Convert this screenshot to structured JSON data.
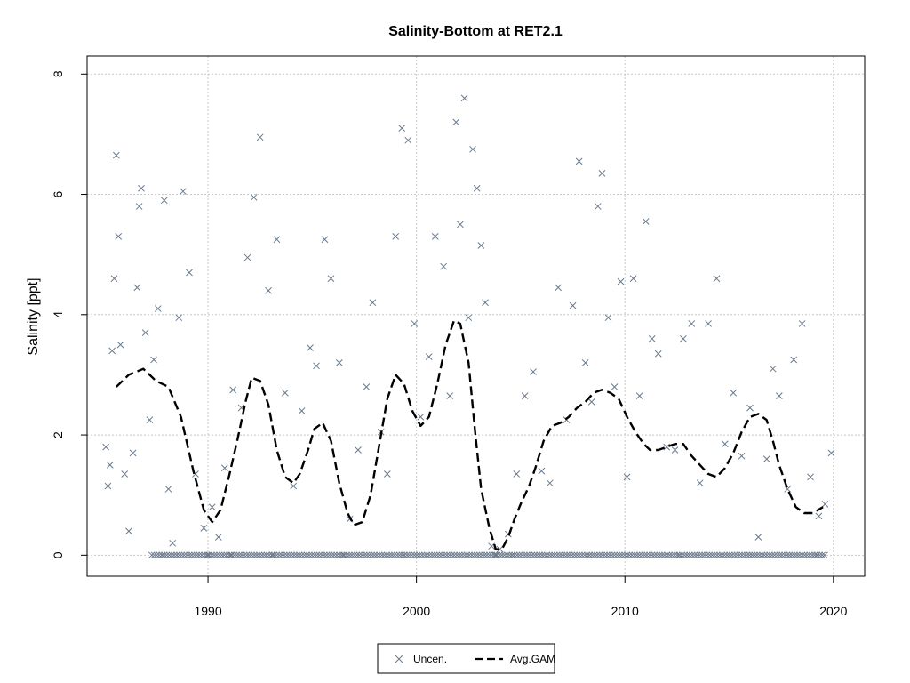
{
  "chart_data": {
    "type": "scatter",
    "title": "Salinity-Bottom at RET2.1",
    "xlabel": "",
    "ylabel": "Salinity [ppt]",
    "xlim": [
      1984.2,
      2021.5
    ],
    "ylim": [
      -0.35,
      8.3
    ],
    "xticks": [
      1990,
      2000,
      2010,
      2020
    ],
    "yticks": [
      0,
      2,
      4,
      6,
      8
    ],
    "grid": true,
    "legend_position": "bottom-center",
    "series": [
      {
        "name": "Uncen.",
        "kind": "points",
        "marker": "x",
        "color": "#6a7a8c",
        "x": [
          1985.1,
          1985.2,
          1985.3,
          1985.4,
          1985.5,
          1985.6,
          1985.7,
          1985.8,
          1986.0,
          1986.2,
          1986.4,
          1986.6,
          1986.7,
          1986.8,
          1987.0,
          1987.2,
          1987.4,
          1987.6,
          1987.9,
          1988.1,
          1988.3,
          1988.6,
          1988.8,
          1989.1,
          1989.4,
          1989.8,
          1990.2,
          1990.5,
          1990.8,
          1991.2,
          1991.6,
          1991.9,
          1992.2,
          1992.5,
          1992.9,
          1993.3,
          1993.7,
          1994.1,
          1994.5,
          1994.9,
          1995.2,
          1995.6,
          1995.9,
          1996.3,
          1996.8,
          1997.2,
          1997.6,
          1997.9,
          1998.3,
          1998.6,
          1999.0,
          1999.3,
          1999.6,
          1999.9,
          2000.2,
          2000.6,
          2000.9,
          2001.3,
          2001.6,
          2001.9,
          2002.1,
          2002.3,
          2002.5,
          2002.7,
          2002.9,
          2003.1,
          2003.3,
          2003.6,
          2004.0,
          2004.4,
          2004.8,
          2005.2,
          2005.6,
          2006.0,
          2006.4,
          2006.8,
          2007.2,
          2007.5,
          2007.8,
          2008.1,
          2008.4,
          2008.7,
          2008.9,
          2009.2,
          2009.5,
          2009.8,
          2010.1,
          2010.4,
          2010.7,
          2011.0,
          2011.3,
          2011.6,
          2012.0,
          2012.4,
          2012.8,
          2013.2,
          2013.6,
          2014.0,
          2014.4,
          2014.8,
          2015.2,
          2015.6,
          2016.0,
          2016.4,
          2016.8,
          2017.1,
          2017.4,
          2017.8,
          2018.1,
          2018.5,
          2018.9,
          2019.3,
          2019.6,
          2019.9,
          1987.8,
          1988.5,
          1990.0,
          1991.1,
          1993.1,
          1996.5,
          1999.4,
          2003.8,
          2004.6,
          2005.9,
          2008.3,
          2012.6,
          2016.1,
          2019.2
        ],
        "y": [
          1.8,
          1.15,
          1.5,
          3.4,
          4.6,
          6.65,
          5.3,
          3.5,
          1.35,
          0.4,
          1.7,
          4.45,
          5.8,
          6.1,
          3.7,
          2.25,
          3.25,
          4.1,
          5.9,
          1.1,
          0.2,
          3.95,
          6.05,
          4.7,
          1.35,
          0.45,
          0.8,
          0.3,
          1.45,
          2.75,
          2.45,
          4.95,
          5.95,
          6.95,
          4.4,
          5.25,
          2.7,
          1.15,
          2.4,
          3.45,
          3.15,
          5.25,
          4.6,
          3.2,
          0.6,
          1.75,
          2.8,
          4.2,
          2.05,
          1.35,
          5.3,
          7.1,
          6.9,
          3.85,
          2.3,
          3.3,
          5.3,
          4.8,
          2.65,
          7.2,
          5.5,
          7.6,
          3.95,
          6.75,
          6.1,
          5.15,
          4.2,
          0.15,
          0.1,
          0.35,
          1.35,
          2.65,
          3.05,
          1.4,
          1.2,
          4.45,
          2.25,
          4.15,
          6.55,
          3.2,
          2.55,
          5.8,
          6.35,
          3.95,
          2.8,
          4.55,
          1.3,
          4.6,
          2.65,
          5.55,
          3.6,
          3.35,
          1.8,
          1.75,
          3.6,
          3.85,
          1.2,
          3.85,
          4.6,
          1.85,
          2.7,
          1.65,
          2.45,
          0.3,
          1.6,
          3.1,
          2.65,
          1.1,
          3.25,
          3.85,
          1.3,
          0.65,
          0.85,
          1.7,
          0.0,
          0.0,
          0.0,
          0.0,
          0.0,
          0.0,
          0.0,
          0.0,
          0.0,
          0.0,
          0.0,
          0.0,
          0.0,
          0.0
        ]
      },
      {
        "name": "Avg.GAM",
        "kind": "line",
        "dash": "long-dash",
        "color": "#000000",
        "x": [
          1985.6,
          1986.2,
          1986.9,
          1987.5,
          1988.1,
          1988.7,
          1989.3,
          1989.8,
          1990.2,
          1990.6,
          1991.0,
          1991.4,
          1991.8,
          1992.1,
          1992.5,
          1992.9,
          1993.3,
          1993.7,
          1994.1,
          1994.4,
          1994.8,
          1995.1,
          1995.5,
          1995.9,
          1996.3,
          1996.7,
          1997.0,
          1997.4,
          1997.8,
          1998.2,
          1998.6,
          1999.0,
          1999.4,
          1999.8,
          2000.2,
          2000.6,
          2001.0,
          2001.4,
          2001.8,
          2002.1,
          2002.5,
          2002.8,
          2003.1,
          2003.5,
          2003.8,
          2004.1,
          2004.4,
          2004.7,
          2005.0,
          2005.4,
          2005.7,
          2006.1,
          2006.5,
          2006.9,
          2007.3,
          2007.7,
          2008.1,
          2008.5,
          2008.9,
          2009.3,
          2009.7,
          2010.1,
          2010.5,
          2010.9,
          2011.2,
          2011.6,
          2012.0,
          2012.4,
          2012.8,
          2013.2,
          2013.6,
          2014.0,
          2014.4,
          2014.8,
          2015.2,
          2015.6,
          2016.0,
          2016.4,
          2016.8,
          2017.1,
          2017.4,
          2017.8,
          2018.2,
          2018.6,
          2019.0,
          2019.5
        ],
        "y": [
          2.8,
          3.0,
          3.1,
          2.9,
          2.8,
          2.3,
          1.4,
          0.75,
          0.55,
          0.75,
          1.3,
          1.9,
          2.55,
          2.95,
          2.9,
          2.5,
          1.75,
          1.3,
          1.2,
          1.35,
          1.75,
          2.1,
          2.2,
          1.9,
          1.2,
          0.7,
          0.5,
          0.55,
          1.0,
          1.8,
          2.6,
          3.0,
          2.85,
          2.4,
          2.15,
          2.3,
          2.85,
          3.5,
          3.9,
          3.85,
          3.2,
          2.1,
          1.1,
          0.45,
          0.1,
          0.1,
          0.3,
          0.6,
          0.85,
          1.15,
          1.45,
          1.9,
          2.15,
          2.2,
          2.3,
          2.45,
          2.55,
          2.7,
          2.75,
          2.7,
          2.6,
          2.3,
          2.05,
          1.85,
          1.75,
          1.75,
          1.8,
          1.85,
          1.85,
          1.65,
          1.5,
          1.35,
          1.3,
          1.45,
          1.7,
          2.05,
          2.3,
          2.35,
          2.25,
          1.9,
          1.5,
          1.1,
          0.8,
          0.7,
          0.7,
          0.8
        ]
      }
    ]
  }
}
